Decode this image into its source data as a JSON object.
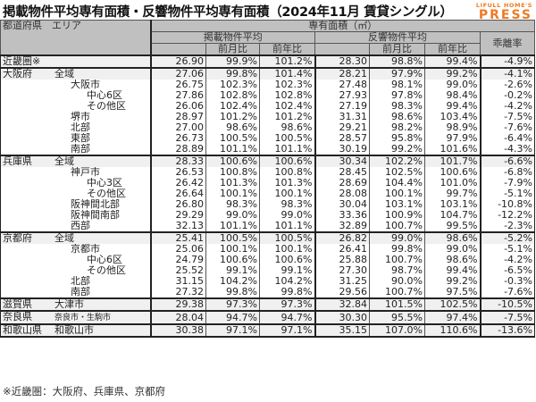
{
  "title": "掲載物件平均専有面積・反響物件平均専有面積（2024年11月 賃貸シングル）",
  "logo": {
    "top": "LIFULL HOME'S",
    "main": "PRESS",
    "color": "#ef7a22"
  },
  "header": {
    "area": "都道府県　エリア",
    "group": "専有面積（㎡）",
    "listed": "掲載物件平均",
    "response": "反響物件平均",
    "gap": "乖離率",
    "mom": "前月比",
    "yoy": "前年比"
  },
  "rows": [
    {
      "pref": "近畿圏※",
      "area": "",
      "level": 0,
      "lv": "26.90",
      "lm": "99.9%",
      "ly": "101.2%",
      "rv": "28.30",
      "rm": "98.8%",
      "ry": "99.4%",
      "gap": "-4.9%"
    },
    {
      "pref": "大阪府",
      "area": "全域",
      "level": 1,
      "lv": "27.06",
      "lm": "99.8%",
      "ly": "101.4%",
      "rv": "28.21",
      "rm": "97.9%",
      "ry": "99.2%",
      "gap": "-4.1%"
    },
    {
      "pref": "",
      "area": "大阪市",
      "level": 2,
      "lv": "26.75",
      "lm": "102.3%",
      "ly": "102.3%",
      "rv": "27.48",
      "rm": "98.1%",
      "ry": "99.0%",
      "gap": "-2.6%"
    },
    {
      "pref": "",
      "area": "中心6区",
      "level": 3,
      "lv": "27.86",
      "lm": "102.8%",
      "ly": "102.8%",
      "rv": "27.93",
      "rm": "97.8%",
      "ry": "98.4%",
      "gap": "-0.2%"
    },
    {
      "pref": "",
      "area": "その他区",
      "level": 3,
      "lv": "26.06",
      "lm": "102.4%",
      "ly": "102.4%",
      "rv": "27.19",
      "rm": "98.3%",
      "ry": "99.4%",
      "gap": "-4.2%"
    },
    {
      "pref": "",
      "area": "堺市",
      "level": 2,
      "lv": "28.97",
      "lm": "101.2%",
      "ly": "101.2%",
      "rv": "31.31",
      "rm": "98.6%",
      "ry": "103.4%",
      "gap": "-7.5%"
    },
    {
      "pref": "",
      "area": "北部",
      "level": 2,
      "lv": "27.00",
      "lm": "98.6%",
      "ly": "98.6%",
      "rv": "29.21",
      "rm": "98.2%",
      "ry": "98.9%",
      "gap": "-7.6%"
    },
    {
      "pref": "",
      "area": "東部",
      "level": 2,
      "lv": "26.73",
      "lm": "100.5%",
      "ly": "100.5%",
      "rv": "28.57",
      "rm": "95.8%",
      "ry": "97.9%",
      "gap": "-6.4%"
    },
    {
      "pref": "",
      "area": "南部",
      "level": 2,
      "lv": "28.89",
      "lm": "101.1%",
      "ly": "101.1%",
      "rv": "30.19",
      "rm": "99.2%",
      "ry": "101.6%",
      "gap": "-4.3%"
    },
    {
      "pref": "兵庫県",
      "area": "全域",
      "level": 1,
      "lv": "28.33",
      "lm": "100.6%",
      "ly": "100.6%",
      "rv": "30.34",
      "rm": "102.2%",
      "ry": "101.7%",
      "gap": "-6.6%"
    },
    {
      "pref": "",
      "area": "神戸市",
      "level": 2,
      "lv": "26.53",
      "lm": "100.8%",
      "ly": "100.8%",
      "rv": "28.45",
      "rm": "102.5%",
      "ry": "100.6%",
      "gap": "-6.8%"
    },
    {
      "pref": "",
      "area": "中心3区",
      "level": 3,
      "lv": "26.42",
      "lm": "101.3%",
      "ly": "101.3%",
      "rv": "28.69",
      "rm": "104.4%",
      "ry": "101.0%",
      "gap": "-7.9%"
    },
    {
      "pref": "",
      "area": "その他区",
      "level": 3,
      "lv": "26.64",
      "lm": "100.1%",
      "ly": "100.1%",
      "rv": "28.08",
      "rm": "100.1%",
      "ry": "99.7%",
      "gap": "-5.1%"
    },
    {
      "pref": "",
      "area": "阪神間北部",
      "level": 2,
      "lv": "26.80",
      "lm": "98.3%",
      "ly": "98.3%",
      "rv": "30.04",
      "rm": "103.1%",
      "ry": "103.1%",
      "gap": "-10.8%"
    },
    {
      "pref": "",
      "area": "阪神間南部",
      "level": 2,
      "lv": "29.29",
      "lm": "99.0%",
      "ly": "99.0%",
      "rv": "33.36",
      "rm": "100.9%",
      "ry": "104.7%",
      "gap": "-12.2%"
    },
    {
      "pref": "",
      "area": "西部",
      "level": 2,
      "lv": "32.13",
      "lm": "101.1%",
      "ly": "101.1%",
      "rv": "32.89",
      "rm": "100.7%",
      "ry": "99.5%",
      "gap": "-2.3%"
    },
    {
      "pref": "京都府",
      "area": "全域",
      "level": 1,
      "lv": "25.41",
      "lm": "100.5%",
      "ly": "100.5%",
      "rv": "26.82",
      "rm": "99.0%",
      "ry": "98.6%",
      "gap": "-5.2%"
    },
    {
      "pref": "",
      "area": "京都市",
      "level": 2,
      "lv": "25.06",
      "lm": "100.1%",
      "ly": "100.1%",
      "rv": "26.41",
      "rm": "99.8%",
      "ry": "99.0%",
      "gap": "-5.1%"
    },
    {
      "pref": "",
      "area": "中心6区",
      "level": 3,
      "lv": "24.79",
      "lm": "100.6%",
      "ly": "100.6%",
      "rv": "25.88",
      "rm": "100.7%",
      "ry": "98.6%",
      "gap": "-4.2%"
    },
    {
      "pref": "",
      "area": "その他区",
      "level": 3,
      "lv": "25.52",
      "lm": "99.1%",
      "ly": "99.1%",
      "rv": "27.30",
      "rm": "98.7%",
      "ry": "99.4%",
      "gap": "-6.5%"
    },
    {
      "pref": "",
      "area": "北部",
      "level": 2,
      "lv": "31.15",
      "lm": "104.2%",
      "ly": "104.2%",
      "rv": "31.25",
      "rm": "90.0%",
      "ry": "99.2%",
      "gap": "-0.3%"
    },
    {
      "pref": "",
      "area": "南部",
      "level": 2,
      "lv": "27.32",
      "lm": "99.8%",
      "ly": "99.8%",
      "rv": "29.56",
      "rm": "100.7%",
      "ry": "97.5%",
      "gap": "-7.6%"
    },
    {
      "pref": "滋賀県",
      "area": "大津市",
      "level": 1,
      "lv": "29.38",
      "lm": "97.3%",
      "ly": "97.3%",
      "rv": "32.84",
      "rm": "101.5%",
      "ry": "102.5%",
      "gap": "-10.5%"
    },
    {
      "pref": "奈良県",
      "area": "奈良市・生駒市",
      "level": 1,
      "lv": "28.04",
      "lm": "94.7%",
      "ly": "94.7%",
      "rv": "30.30",
      "rm": "95.5%",
      "ry": "97.4%",
      "gap": "-7.5%"
    },
    {
      "pref": "和歌山県",
      "area": "和歌山市",
      "level": 1,
      "lv": "30.38",
      "lm": "97.1%",
      "ly": "97.1%",
      "rv": "35.15",
      "rm": "107.0%",
      "ry": "110.6%",
      "gap": "-13.6%"
    }
  ],
  "note": "※近畿圏：大阪府、兵庫県、京都府"
}
